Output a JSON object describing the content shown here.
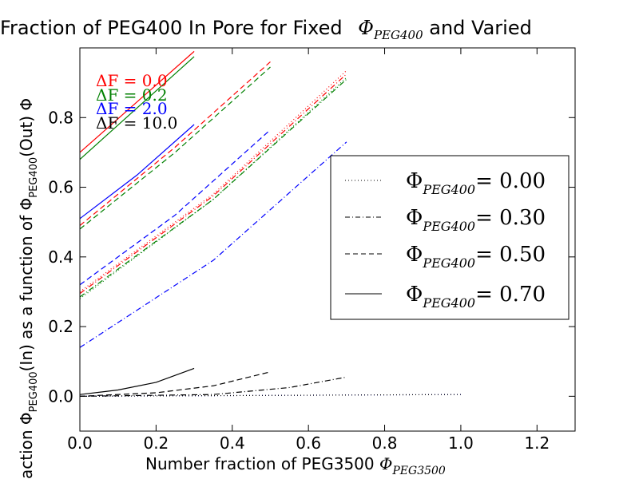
{
  "chart_data": {
    "type": "line",
    "title": {
      "prefix": "Fraction of PEG400 In Pore for Fixed ",
      "symbol": "Φ",
      "subscript": "PEG400",
      "suffix": " and Varied"
    },
    "xlabel": {
      "text": "Number fraction of PEG3500 ",
      "symbol": "Φ",
      "subscript": "PEG3500"
    },
    "ylabel": {
      "text": "action Φ",
      "subscript": "PEG400",
      "middle": "(In) as a function of Φ",
      "subscript2": "PEG400",
      "tail": "(Out) Φ"
    },
    "xlim": [
      0.0,
      1.3
    ],
    "ylim": [
      -0.1,
      1.0
    ],
    "xticks": [
      "0.0",
      "0.2",
      "0.4",
      "0.6",
      "0.8",
      "1.0",
      "1.2"
    ],
    "yticks": [
      "0.0",
      "0.2",
      "0.4",
      "0.6",
      "0.8"
    ],
    "grid": false,
    "legend_position": "center-right",
    "legend": [
      {
        "label_symbol": "Φ",
        "label_sub": "PEG400",
        "label_value": "= 0.00",
        "linestyle": "dotted"
      },
      {
        "label_symbol": "Φ",
        "label_sub": "PEG400",
        "label_value": "= 0.30",
        "linestyle": "dashdot"
      },
      {
        "label_symbol": "Φ",
        "label_sub": "PEG400",
        "label_value": "= 0.50",
        "linestyle": "dashed"
      },
      {
        "label_symbol": "Φ",
        "label_sub": "PEG400",
        "label_value": "= 0.70",
        "linestyle": "solid"
      }
    ],
    "deltaF_labels": [
      {
        "text": "ΔF = 0.0",
        "color": "#ff0000"
      },
      {
        "text": "ΔF = 0.2",
        "color": "#008000"
      },
      {
        "text": "ΔF = 2.0",
        "color": "#0000ff"
      },
      {
        "text": "ΔF = 10.0",
        "color": "#000000"
      }
    ],
    "colors": {
      "dF0.0": "#ff0000",
      "dF0.2": "#008000",
      "dF2.0": "#0000ff",
      "dF10.0": "#000000"
    },
    "series": [
      {
        "color": "#ff0000",
        "linestyle": "solid",
        "x": [
          0.0,
          0.3
        ],
        "y": [
          0.7,
          0.99
        ]
      },
      {
        "color": "#008000",
        "linestyle": "solid",
        "x": [
          0.0,
          0.3
        ],
        "y": [
          0.68,
          0.975
        ]
      },
      {
        "color": "#0000ff",
        "linestyle": "solid",
        "x": [
          0.0,
          0.15,
          0.3
        ],
        "y": [
          0.51,
          0.635,
          0.78
        ]
      },
      {
        "color": "#000000",
        "linestyle": "solid",
        "x": [
          0.0,
          0.1,
          0.2,
          0.3
        ],
        "y": [
          0.005,
          0.018,
          0.04,
          0.08
        ]
      },
      {
        "color": "#ff0000",
        "linestyle": "dashed",
        "x": [
          0.0,
          0.25,
          0.5
        ],
        "y": [
          0.49,
          0.715,
          0.96
        ]
      },
      {
        "color": "#008000",
        "linestyle": "dashed",
        "x": [
          0.0,
          0.25,
          0.5
        ],
        "y": [
          0.48,
          0.7,
          0.945
        ]
      },
      {
        "color": "#0000ff",
        "linestyle": "dashed",
        "x": [
          0.0,
          0.25,
          0.5
        ],
        "y": [
          0.32,
          0.52,
          0.765
        ]
      },
      {
        "color": "#000000",
        "linestyle": "dashed",
        "x": [
          0.0,
          0.2,
          0.35,
          0.5
        ],
        "y": [
          0.0,
          0.01,
          0.03,
          0.07
        ]
      },
      {
        "color": "#ff0000",
        "linestyle": "dotted",
        "x": [
          0.0,
          0.35,
          0.7
        ],
        "y": [
          0.3,
          0.58,
          0.935
        ]
      },
      {
        "color": "#008000",
        "linestyle": "dotted",
        "x": [
          0.0,
          0.35,
          0.7
        ],
        "y": [
          0.28,
          0.565,
          0.915
        ]
      },
      {
        "color": "#ff0000",
        "linestyle": "dashdot",
        "x": [
          0.0,
          0.35,
          0.7
        ],
        "y": [
          0.295,
          0.575,
          0.925
        ]
      },
      {
        "color": "#008000",
        "linestyle": "dashdot",
        "x": [
          0.0,
          0.35,
          0.7
        ],
        "y": [
          0.285,
          0.565,
          0.91
        ]
      },
      {
        "color": "#0000ff",
        "linestyle": "dashdot",
        "x": [
          0.0,
          0.35,
          0.7
        ],
        "y": [
          0.14,
          0.39,
          0.73
        ]
      },
      {
        "color": "#000000",
        "linestyle": "dashdot",
        "x": [
          0.0,
          0.35,
          0.55,
          0.7
        ],
        "y": [
          0.0,
          0.005,
          0.025,
          0.055
        ]
      },
      {
        "color": "#0000ff",
        "linestyle": "dotted",
        "x": [
          0.0,
          1.0
        ],
        "y": [
          0.0,
          0.005
        ]
      },
      {
        "color": "#000000",
        "linestyle": "dotted",
        "x": [
          0.0,
          1.0
        ],
        "y": [
          0.0,
          0.005
        ]
      }
    ]
  }
}
